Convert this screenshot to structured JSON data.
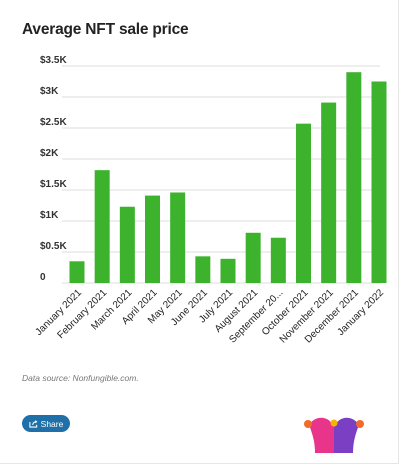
{
  "header": {
    "title": "Average NFT sale price"
  },
  "footer": {
    "source": "Data source: Nonfungible.com.",
    "share_label": "Share"
  },
  "colors": {
    "bar": "#3db22d",
    "grid": "#dddddd",
    "share_button": "#1f6fa8"
  },
  "icons": {
    "share": "share-icon",
    "logo": "jester-hat-logo"
  },
  "chart_data": {
    "type": "bar",
    "title": "Average NFT sale price",
    "categories": [
      "January 2021",
      "February 2021",
      "March 2021",
      "April 2021",
      "May 2021",
      "June 2021",
      "July 2021",
      "August 2021",
      "September 20...",
      "October 2021",
      "November 2021",
      "December 2021",
      "January 2022"
    ],
    "values": [
      350,
      1820,
      1230,
      1410,
      1460,
      430,
      390,
      810,
      730,
      2570,
      2910,
      3400,
      3250
    ],
    "yticks": [
      0,
      500,
      1000,
      1500,
      2000,
      2500,
      3000,
      3500
    ],
    "ytick_labels": [
      "0",
      "$0.5K",
      "$1K",
      "$1.5K",
      "$2K",
      "$2.5K",
      "$3K",
      "$3.5K"
    ],
    "ylim": [
      0,
      3500
    ],
    "grid": true,
    "legend": "none"
  }
}
